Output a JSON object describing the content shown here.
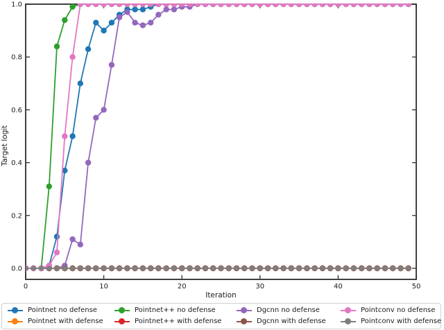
{
  "figure": {
    "background": "#ffffff",
    "frame_color": "#2b2b2b"
  },
  "chart_data": {
    "type": "line",
    "title": "",
    "xlabel": "Iteration",
    "ylabel": "Target logit",
    "xlim": [
      0,
      50
    ],
    "ylim": [
      -0.042,
      1.0
    ],
    "xticks": [
      0,
      10,
      20,
      30,
      40,
      50
    ],
    "yticks": [
      0.0,
      0.2,
      0.4,
      0.6,
      0.8,
      1.0
    ],
    "grid": false,
    "marker": "circle",
    "legend_position": "below-4-columns-2-rows",
    "x": [
      0,
      1,
      2,
      3,
      4,
      5,
      6,
      7,
      8,
      9,
      10,
      11,
      12,
      13,
      14,
      15,
      16,
      17,
      18,
      19,
      20,
      21,
      22,
      23,
      24,
      25,
      26,
      27,
      28,
      29,
      30,
      31,
      32,
      33,
      34,
      35,
      36,
      37,
      38,
      39,
      40,
      41,
      42,
      43,
      44,
      45,
      46,
      47,
      48,
      49
    ],
    "series": [
      {
        "name": "Pointnet no defense",
        "color": "#1f77b4",
        "values": [
          0,
          0,
          0,
          0.01,
          0.12,
          0.37,
          0.5,
          0.7,
          0.83,
          0.93,
          0.9,
          0.93,
          0.96,
          0.98,
          0.98,
          0.98,
          0.99,
          1,
          1,
          1,
          1,
          1,
          1,
          1,
          1,
          1,
          1,
          1,
          1,
          1,
          1,
          1,
          1,
          1,
          1,
          1,
          1,
          1,
          1,
          1,
          1,
          1,
          1,
          1,
          1,
          1,
          1,
          1,
          1,
          1
        ]
      },
      {
        "name": "Pointnet with defense",
        "color": "#ff7f0e",
        "values": [
          0,
          0,
          0,
          0,
          0,
          0,
          0,
          0,
          0,
          0,
          0,
          0,
          0,
          0,
          0,
          0,
          0,
          0,
          0,
          0,
          0,
          0,
          0,
          0,
          0,
          0,
          0,
          0,
          0,
          0,
          0,
          0,
          0,
          0,
          0,
          0,
          0,
          0,
          0,
          0,
          0,
          0,
          0,
          0,
          0,
          0,
          0,
          0,
          0,
          0
        ]
      },
      {
        "name": "Pointnet++ no defense",
        "color": "#2ca02c",
        "values": [
          0,
          0,
          0,
          0.31,
          0.84,
          0.94,
          0.99,
          1,
          1,
          1,
          1,
          1,
          1,
          1,
          1,
          1,
          1,
          1,
          1,
          1,
          1,
          1,
          1,
          1,
          1,
          1,
          1,
          1,
          1,
          1,
          1,
          1,
          1,
          1,
          1,
          1,
          1,
          1,
          1,
          1,
          1,
          1,
          1,
          1,
          1,
          1,
          1,
          1,
          1,
          1
        ]
      },
      {
        "name": "Pointnet++ with defense",
        "color": "#d62728",
        "values": [
          0,
          0,
          0,
          0,
          0,
          0,
          0,
          0,
          0,
          0,
          0,
          0,
          0,
          0,
          0,
          0,
          0,
          0,
          0,
          0,
          0,
          0,
          0,
          0,
          0,
          0,
          0,
          0,
          0,
          0,
          0,
          0,
          0,
          0,
          0,
          0,
          0,
          0,
          0,
          0,
          0,
          0,
          0,
          0,
          0,
          0,
          0,
          0,
          0,
          0
        ]
      },
      {
        "name": "Dgcnn no defense",
        "color": "#9467bd",
        "values": [
          0,
          0,
          0,
          0,
          0,
          0.01,
          0.11,
          0.09,
          0.4,
          0.57,
          0.6,
          0.77,
          0.95,
          0.97,
          0.93,
          0.92,
          0.93,
          0.96,
          0.98,
          0.98,
          0.99,
          0.99,
          1,
          1,
          1,
          1,
          1,
          1,
          1,
          1,
          1,
          1,
          1,
          1,
          1,
          1,
          1,
          1,
          1,
          1,
          1,
          1,
          1,
          1,
          1,
          1,
          1,
          1,
          1,
          1
        ]
      },
      {
        "name": "Dgcnn with defense",
        "color": "#8c564b",
        "values": [
          0,
          0,
          0,
          0,
          0,
          0,
          0,
          0,
          0,
          0,
          0,
          0,
          0,
          0,
          0,
          0,
          0,
          0,
          0,
          0,
          0,
          0,
          0,
          0,
          0,
          0,
          0,
          0,
          0,
          0,
          0,
          0,
          0,
          0,
          0,
          0,
          0,
          0,
          0,
          0,
          0,
          0,
          0,
          0,
          0,
          0,
          0,
          0,
          0,
          0
        ]
      },
      {
        "name": "Pointconv no defense",
        "color": "#e377c2",
        "values": [
          0,
          0,
          0,
          0.01,
          0.06,
          0.5,
          0.8,
          1,
          1,
          1,
          1,
          1,
          1,
          1,
          1,
          1,
          1,
          1,
          1,
          1,
          1,
          1,
          1,
          1,
          1,
          1,
          1,
          1,
          1,
          1,
          1,
          1,
          1,
          1,
          1,
          1,
          1,
          1,
          1,
          1,
          1,
          1,
          1,
          1,
          1,
          1,
          1,
          1,
          1,
          1
        ]
      },
      {
        "name": "Pointconv with defense",
        "color": "#7f7f7f",
        "values": [
          0,
          0,
          0,
          0,
          0,
          0,
          0,
          0,
          0,
          0,
          0,
          0,
          0,
          0,
          0,
          0,
          0,
          0,
          0,
          0,
          0,
          0,
          0,
          0,
          0,
          0,
          0,
          0,
          0,
          0,
          0,
          0,
          0,
          0,
          0,
          0,
          0,
          0,
          0,
          0,
          0,
          0,
          0,
          0,
          0,
          0,
          0,
          0,
          0,
          0
        ]
      }
    ]
  },
  "legend": {
    "items": [
      {
        "label": "Pointnet no defense",
        "color": "#1f77b4"
      },
      {
        "label": "Pointnet++ no defense",
        "color": "#2ca02c"
      },
      {
        "label": "Dgcnn no defense",
        "color": "#9467bd"
      },
      {
        "label": "Pointconv no defense",
        "color": "#e377c2"
      },
      {
        "label": "Pointnet with defense",
        "color": "#ff7f0e"
      },
      {
        "label": "Pointnet++ with defense",
        "color": "#d62728"
      },
      {
        "label": "Dgcnn with defense",
        "color": "#8c564b"
      },
      {
        "label": "Pointconv with defense",
        "color": "#7f7f7f"
      }
    ]
  }
}
